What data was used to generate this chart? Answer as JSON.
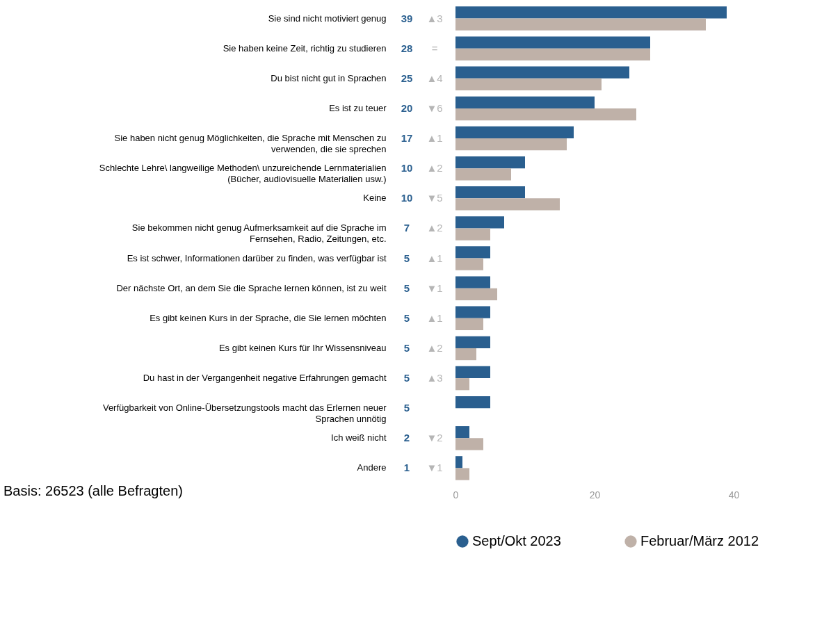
{
  "chart_data": {
    "type": "bar",
    "orientation": "horizontal",
    "categories": [
      "Sie sind nicht motiviert genug",
      "Sie haben keine Zeit, richtig zu studieren",
      "Du bist nicht gut in Sprachen",
      "Es ist zu teuer",
      "Sie haben nicht genug Möglichkeiten, die Sprache mit Menschen zu verwenden, die sie sprechen",
      "Schlechte Lehre\\ langweilige Methoden\\ unzureichende Lernmaterialien (Bücher, audiovisuelle Materialien usw.)",
      "Keine",
      "Sie bekommen nicht genug Aufmerksamkeit auf die Sprache im Fernsehen, Radio, Zeitungen, etc.",
      "Es ist schwer, Informationen darüber zu finden, was verfügbar ist",
      "Der nächste Ort, an dem Sie die Sprache lernen können, ist zu weit",
      "Es gibt keinen Kurs in der Sprache, die Sie lernen möchten",
      "Es gibt keinen Kurs für Ihr Wissensniveau",
      "Du hast in der Vergangenheit negative Erfahrungen gemacht",
      "Verfügbarkeit von Online-Übersetzungstools macht das Erlernen neuer Sprachen unnötig",
      "Ich weiß nicht",
      "Andere"
    ],
    "series": [
      {
        "name": "Sept/Okt 2023",
        "color": "#2a5f8f",
        "values": [
          39,
          28,
          25,
          20,
          17,
          10,
          10,
          7,
          5,
          5,
          5,
          5,
          5,
          5,
          2,
          1
        ],
        "value_labels": [
          "39",
          "28",
          "25",
          "20",
          "17",
          "10",
          "10",
          "7",
          "5",
          "5",
          "5",
          "5",
          "5",
          "5",
          "2",
          "1"
        ]
      },
      {
        "name": "Februar/März 2012",
        "color": "#bfb1a8",
        "values": [
          36,
          28,
          21,
          26,
          16,
          8,
          15,
          5,
          4,
          6,
          4,
          3,
          2,
          null,
          4,
          2
        ]
      }
    ],
    "xlim": [
      0,
      40
    ],
    "xticks": [
      0,
      20,
      40
    ],
    "grid": false,
    "legend": "bottom",
    "annotations": [
      "Basis: 26523 (alle Befragten)",
      "▲3",
      "=",
      "▲4",
      "▼6",
      "▲1",
      "▲2",
      "▼5",
      "▲2",
      "▲1",
      "▼1",
      "▲1",
      "▲2",
      "▲3",
      "▼2",
      "▼1"
    ]
  }
}
